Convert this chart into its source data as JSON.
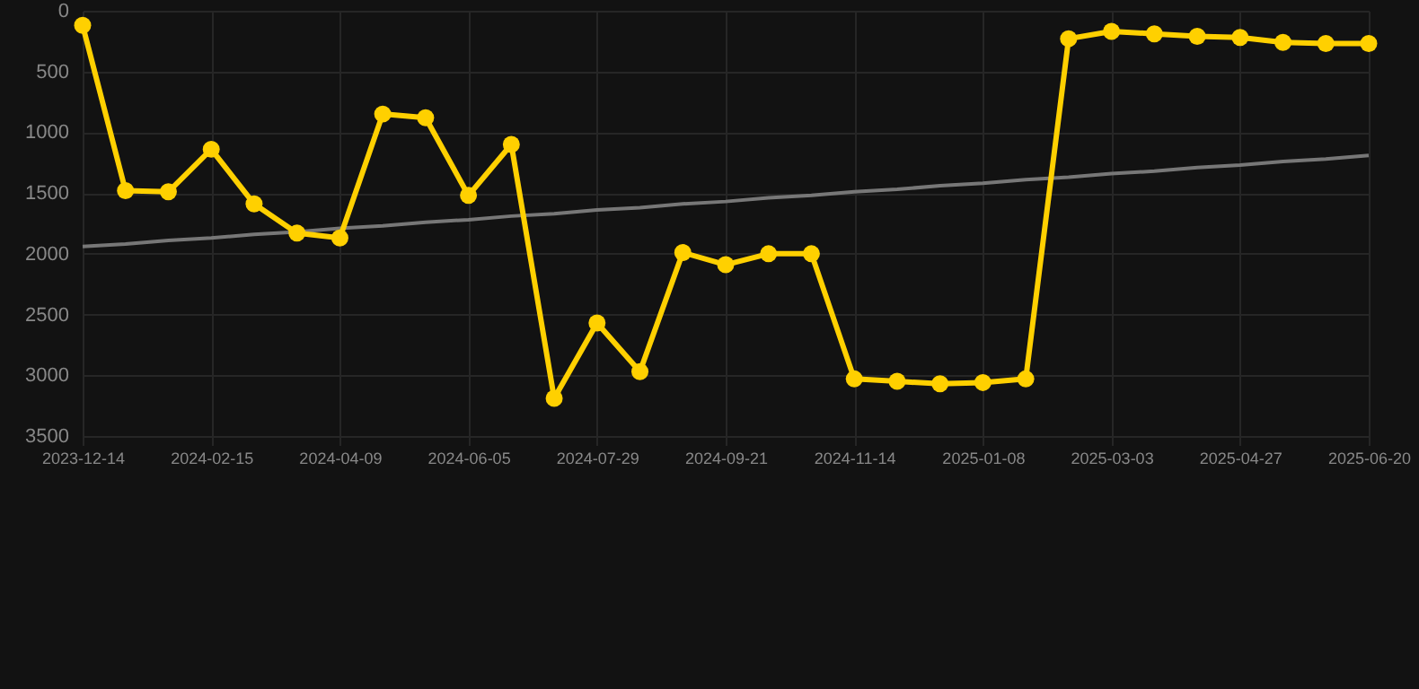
{
  "chart_data": {
    "type": "line",
    "categories": [
      "2023-12-14",
      null,
      null,
      "2024-02-15",
      null,
      null,
      "2024-04-09",
      null,
      null,
      "2024-06-05",
      null,
      null,
      "2024-07-29",
      null,
      null,
      "2024-09-21",
      null,
      null,
      "2024-11-14",
      null,
      null,
      "2025-01-08",
      null,
      null,
      "2025-03-03",
      null,
      null,
      "2025-04-27",
      null,
      null,
      "2025-06-20"
    ],
    "series": [
      {
        "color": "#ffd000",
        "marker": "circle",
        "values": [
          120,
          1480,
          1490,
          1140,
          1590,
          1830,
          1870,
          850,
          880,
          1520,
          1100,
          3190,
          2570,
          2970,
          1990,
          2090,
          2000,
          2000,
          3030,
          3050,
          3070,
          3060,
          3030,
          230,
          170,
          190,
          210,
          220,
          260,
          270,
          270
        ]
      },
      {
        "color": "#777777",
        "marker": "none",
        "values": [
          1940,
          1920,
          1890,
          1870,
          1840,
          1820,
          1790,
          1770,
          1740,
          1720,
          1690,
          1670,
          1640,
          1620,
          1590,
          1570,
          1540,
          1520,
          1490,
          1470,
          1440,
          1420,
          1390,
          1370,
          1340,
          1320,
          1290,
          1270,
          1240,
          1220,
          1190
        ]
      }
    ],
    "ylim": [
      3500,
      0
    ],
    "yticks": [
      0,
      500,
      1000,
      1500,
      2000,
      2500,
      3000,
      3500
    ],
    "grid": true
  }
}
